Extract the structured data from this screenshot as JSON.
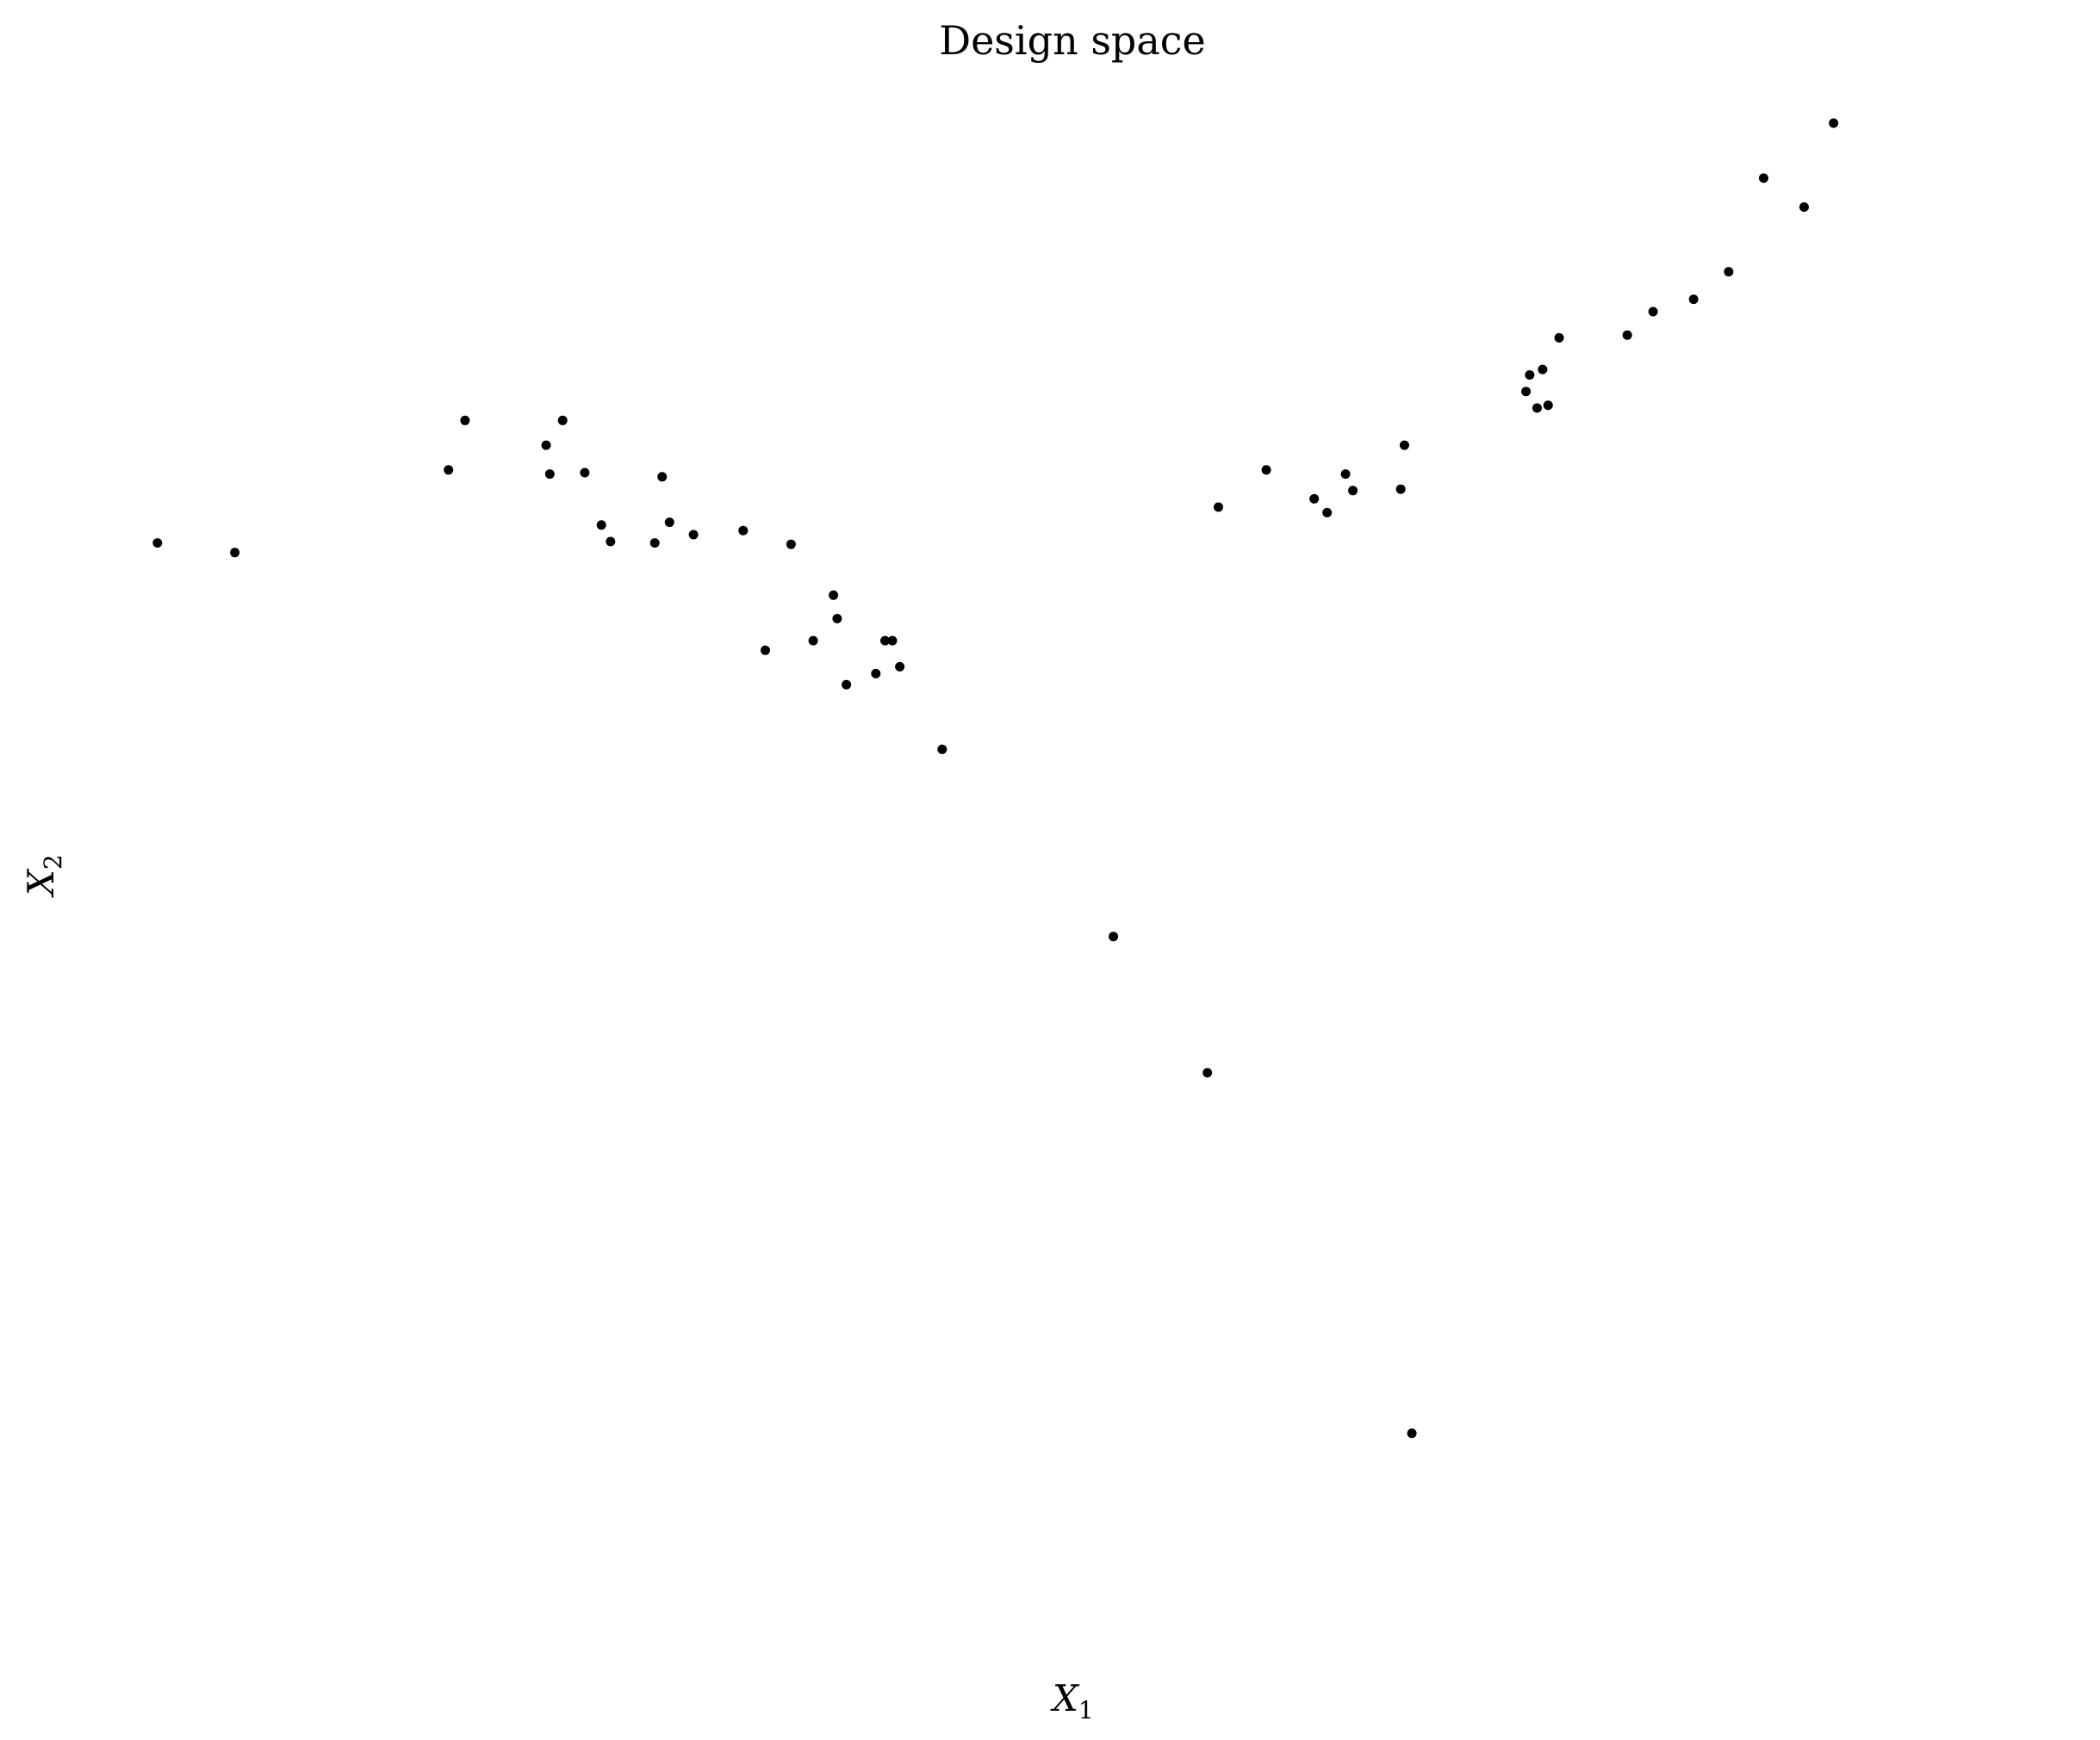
{
  "chart_data": {
    "type": "scatter",
    "title": "Design space",
    "xlabel": {
      "main": "X",
      "sub": "1"
    },
    "ylabel": {
      "main": "X",
      "sub": "2"
    },
    "xlim": [
      -0.013,
      1.013
    ],
    "ylim": [
      -0.113,
      1.013
    ],
    "grid": false,
    "axes_visible": false,
    "point_color": "#000000",
    "points": [
      [
        0.0,
        0.708
      ],
      [
        0.042,
        0.701
      ],
      [
        0.158,
        0.761
      ],
      [
        0.167,
        0.797
      ],
      [
        0.211,
        0.779
      ],
      [
        0.213,
        0.758
      ],
      [
        0.22,
        0.797
      ],
      [
        0.232,
        0.759
      ],
      [
        0.241,
        0.721
      ],
      [
        0.246,
        0.709
      ],
      [
        0.27,
        0.708
      ],
      [
        0.274,
        0.756
      ],
      [
        0.278,
        0.723
      ],
      [
        0.291,
        0.714
      ],
      [
        0.318,
        0.717
      ],
      [
        0.33,
        0.63
      ],
      [
        0.344,
        0.707
      ],
      [
        0.356,
        0.637
      ],
      [
        0.367,
        0.67
      ],
      [
        0.369,
        0.653
      ],
      [
        0.374,
        0.605
      ],
      [
        0.39,
        0.613
      ],
      [
        0.395,
        0.637
      ],
      [
        0.399,
        0.637
      ],
      [
        0.403,
        0.618
      ],
      [
        0.426,
        0.558
      ],
      [
        0.519,
        0.422
      ],
      [
        0.57,
        0.323
      ],
      [
        0.576,
        0.734
      ],
      [
        0.602,
        0.761
      ],
      [
        0.628,
        0.74
      ],
      [
        0.635,
        0.73
      ],
      [
        0.645,
        0.758
      ],
      [
        0.649,
        0.746
      ],
      [
        0.675,
        0.747
      ],
      [
        0.677,
        0.779
      ],
      [
        0.681,
        0.061
      ],
      [
        0.743,
        0.818
      ],
      [
        0.745,
        0.83
      ],
      [
        0.749,
        0.806
      ],
      [
        0.752,
        0.834
      ],
      [
        0.755,
        0.808
      ],
      [
        0.761,
        0.857
      ],
      [
        0.798,
        0.859
      ],
      [
        0.812,
        0.876
      ],
      [
        0.834,
        0.885
      ],
      [
        0.853,
        0.905
      ],
      [
        0.872,
        0.973
      ],
      [
        0.894,
        0.952
      ],
      [
        0.91,
        1.013
      ]
    ]
  }
}
